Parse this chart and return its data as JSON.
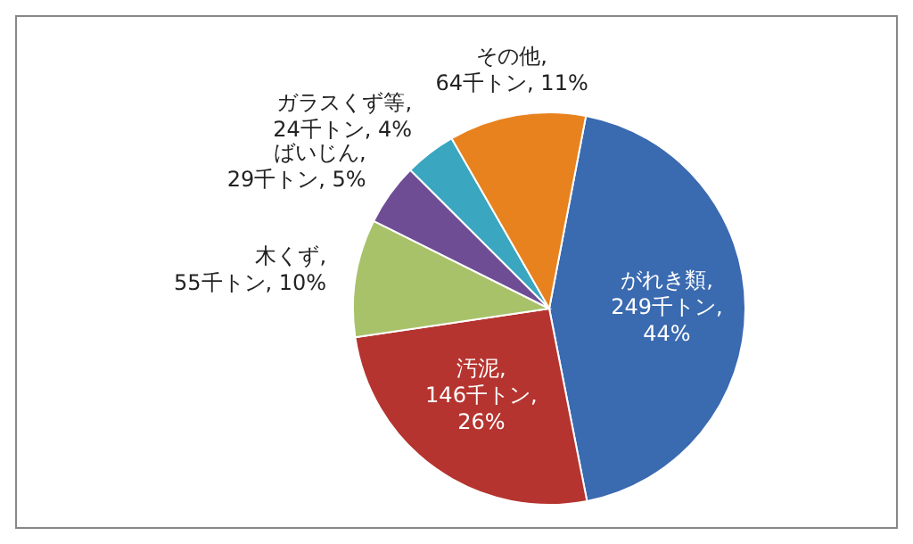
{
  "chart_data": {
    "type": "pie",
    "categories": [
      "がれき類",
      "汚泥",
      "木くず",
      "ばいじん",
      "ガラスくず等",
      "その他"
    ],
    "values": [
      249,
      146,
      55,
      29,
      24,
      64
    ],
    "value_labels": [
      ", 249千トン, 44%",
      ", 146千トン, 26%",
      ", 55千トン, 10%",
      ", 29千トン, 5%",
      ", 24千トン, 4%",
      ", 64千トン, 11%"
    ],
    "colors": [
      "#3a6ab0",
      "#b5342f",
      "#a8c26a",
      "#6e4d94",
      "#3aa6c0",
      "#e8821e"
    ]
  }
}
